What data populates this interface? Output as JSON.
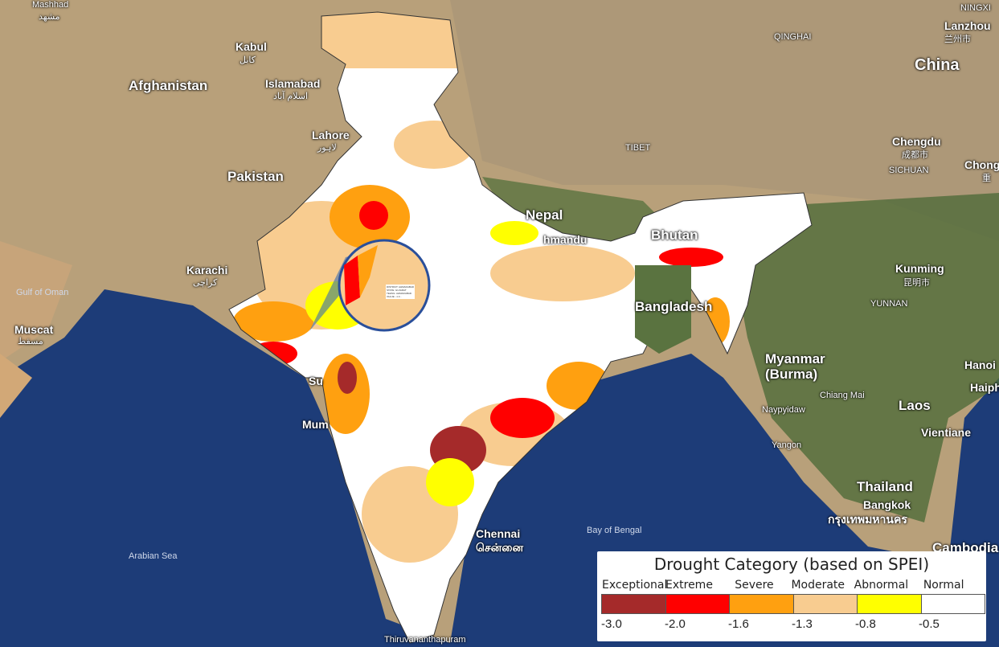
{
  "legend": {
    "title": "Drought Category (based on SPEI)",
    "categories": [
      {
        "label": "Exceptional",
        "color": "#a52a2a",
        "threshold": "-3.0"
      },
      {
        "label": "Extreme",
        "color": "#ff0000",
        "threshold": "-2.0"
      },
      {
        "label": "Severe",
        "color": "#ffa010",
        "threshold": "-1.6"
      },
      {
        "label": "Moderate",
        "color": "#f8cc90",
        "threshold": "-1.3"
      },
      {
        "label": "Abnormal",
        "color": "#ffff00",
        "threshold": "-0.8"
      },
      {
        "label": "Normal",
        "color": "#ffffff",
        "threshold": "-0.5"
      }
    ]
  },
  "tooltip": {
    "lines": [
      "DISTRICT: AHMADABAD",
      "STATE: GUJARAT",
      "TEHSIL: AHMADABAD",
      "VALUE: -1.3..."
    ]
  },
  "places": {
    "mashhad": "Mashhad",
    "mashhad_local": "مشهد",
    "kabul": "Kabul",
    "kabul_local": "کابل",
    "afghanistan": "Afghanistan",
    "islamabad": "Islamabad",
    "islamabad_local": "اسلام آباد",
    "lahore": "Lahore",
    "lahore_local": "لاہور",
    "pakistan": "Pakistan",
    "karachi": "Karachi",
    "karachi_local": "کراچی",
    "gulf_of_oman": "Gulf of Oman",
    "muscat": "Muscat",
    "muscat_local": "مسقط",
    "arabian_sea": "Arabian Sea",
    "qinghai": "QINGHAI",
    "tibet": "TIBET",
    "china": "China",
    "lanzhou": "Lanzhou",
    "lanzhou_local": "兰州市",
    "ningxia": "NINGXI",
    "chengdu": "Chengdu",
    "chengdu_local": "成都市",
    "sichuan": "SICHUAN",
    "chong": "Chong",
    "chong_local": "重",
    "nepal": "Nepal",
    "kathmandu": "hmandu",
    "bhutan": "Bhutan",
    "bangladesh": "Bangladesh",
    "kunming": "Kunming",
    "kunming_local": "昆明市",
    "yunnan": "YUNNAN",
    "myanmar": "Myanmar\n(Burma)",
    "hanoi": "Hanoi",
    "haiphong": "Haiph",
    "laos": "Laos",
    "chiang_mai": "Chiang Mai",
    "naypyidaw": "Naypyidaw",
    "yangon": "Yangon",
    "vientiane": "Vientiane",
    "thailand": "Thailand",
    "bangkok": "Bangkok",
    "bangkok_local": "กรุงเทพมหานคร",
    "cambodia": "Cambodia",
    "bay_of_bengal": "Bay of Bengal",
    "chennai": "Chennai",
    "chennai_local": "சென்னை",
    "mumbai": "Mum",
    "surat": "Su",
    "thiruvananthapuram": "Thiruvananthapuram"
  }
}
